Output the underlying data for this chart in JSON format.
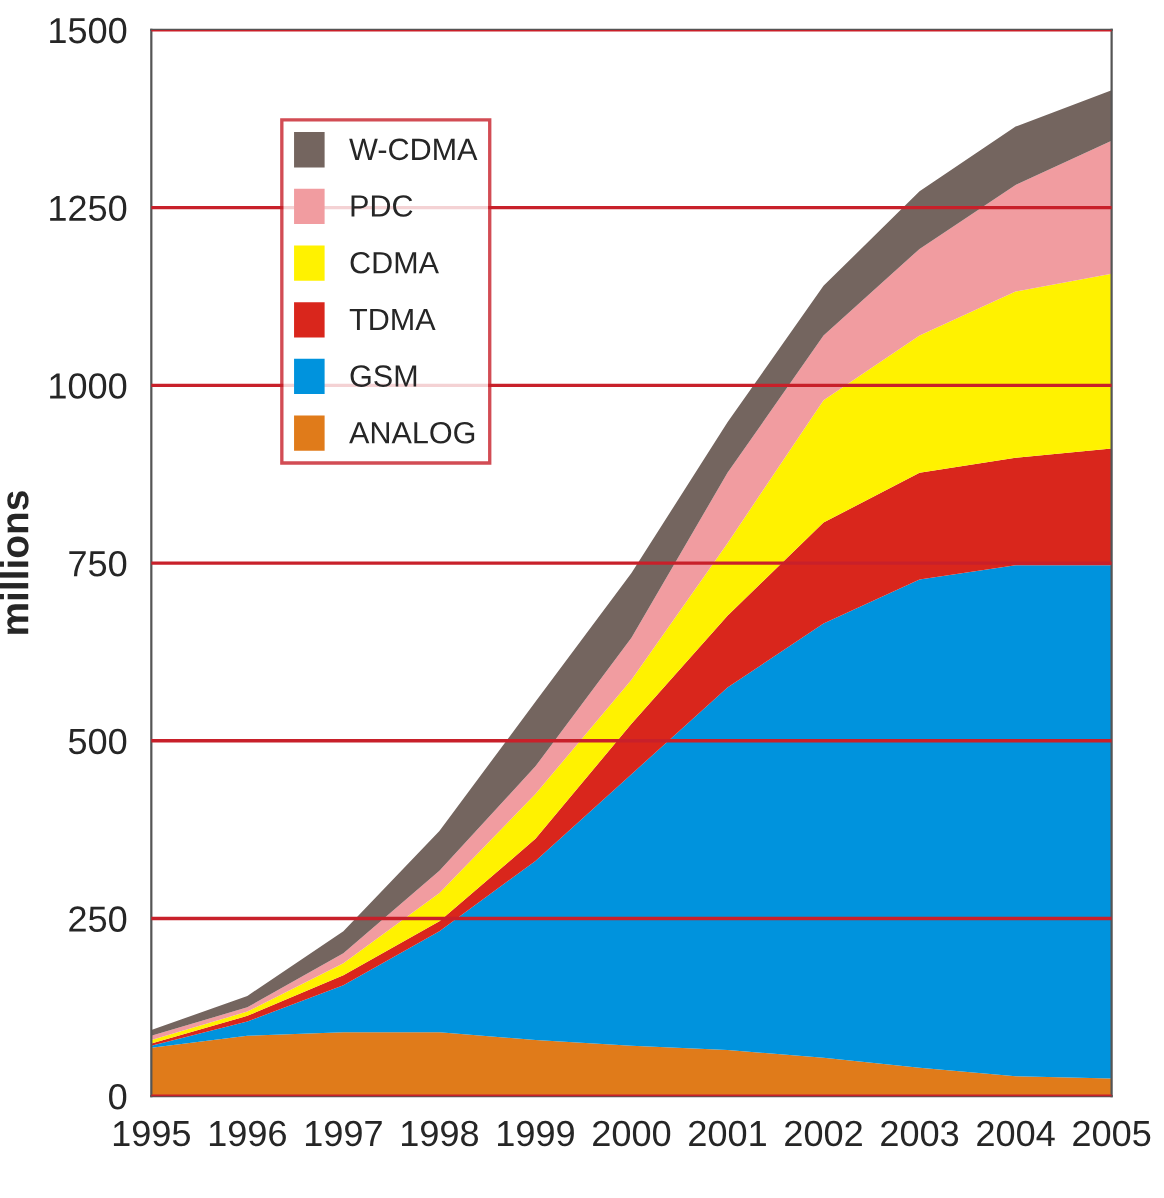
{
  "chart_data": {
    "type": "area",
    "stacked": true,
    "ylabel": "millions",
    "x": [
      1995,
      1996,
      1997,
      1998,
      1999,
      2000,
      2001,
      2002,
      2003,
      2004,
      2005
    ],
    "series": [
      {
        "name": "ANALOG",
        "color": "#e07b1a",
        "values": [
          68,
          85,
          90,
          90,
          79,
          71,
          65,
          54,
          40,
          28,
          25
        ]
      },
      {
        "name": "GSM",
        "color": "#0093dd",
        "values": [
          3,
          20,
          66,
          142,
          252,
          382,
          510,
          611,
          687,
          719,
          722
        ]
      },
      {
        "name": "TDMA",
        "color": "#d9261c",
        "values": [
          3,
          8,
          14,
          14,
          31,
          71,
          101,
          142,
          150,
          151,
          164
        ]
      },
      {
        "name": "CDMA",
        "color": "#fff200",
        "values": [
          5,
          6,
          17,
          40,
          63,
          62,
          102,
          172,
          193,
          234,
          246
        ]
      },
      {
        "name": "PDC",
        "color": "#f19ca0",
        "values": [
          6,
          6,
          14,
          31,
          39,
          59,
          99,
          91,
          122,
          150,
          187
        ]
      },
      {
        "name": "W-CDMA",
        "color": "#74655f",
        "values": [
          8,
          16,
          31,
          56,
          91,
          91,
          71,
          70,
          81,
          82,
          71
        ]
      }
    ],
    "xlim": [
      1995,
      2005
    ],
    "xticks": [
      1995,
      1996,
      1997,
      1998,
      1999,
      2000,
      2001,
      2002,
      2003,
      2004,
      2005
    ],
    "ylim": [
      0,
      1500
    ],
    "yticks": [
      0,
      250,
      500,
      750,
      1000,
      1250,
      1500
    ],
    "grid": "y",
    "legend": "top left"
  }
}
